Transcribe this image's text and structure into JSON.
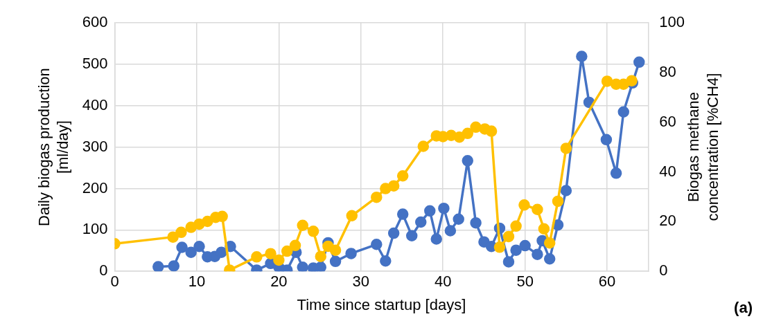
{
  "chart_data": {
    "type": "line",
    "xlabel": "Time since startup [days]",
    "ylabel": "Daily biogas production [ml/day]",
    "y2label": "Biogas methane concentration [%CH4]",
    "xlim": [
      0,
      65
    ],
    "xticks": [
      0,
      10,
      20,
      30,
      40,
      50,
      60
    ],
    "ylim": [
      0,
      600
    ],
    "yticks": [
      0,
      100,
      200,
      300,
      400,
      500,
      600
    ],
    "y2lim": [
      0,
      100
    ],
    "y2ticks": [
      0,
      20,
      40,
      60,
      80,
      100
    ],
    "grid": true,
    "legend": false,
    "marker": "circle",
    "line_style": "solid",
    "annotations": [
      "(a)"
    ],
    "series": [
      {
        "color": "#4472c4",
        "x": [
          5.3,
          7.2,
          8.2,
          9.3,
          10.3,
          11.3,
          12.2,
          13.0,
          14.1,
          17.3,
          19.0,
          20.0,
          21.0,
          22.1,
          22.9,
          24.2,
          25.1,
          26.0,
          26.9,
          28.8,
          31.9,
          33.0,
          34.0,
          35.1,
          36.2,
          37.3,
          38.4,
          39.2,
          40.1,
          40.9,
          41.9,
          43.0,
          44.0,
          45.0,
          45.9,
          46.9,
          48.0,
          48.9,
          50.0,
          51.5,
          52.1,
          53.0,
          54.0,
          55.0,
          56.9,
          57.8,
          59.9,
          61.1,
          62.0,
          63.1,
          63.9
        ],
        "values": [
          11,
          13,
          58,
          46,
          60,
          35,
          36,
          46,
          60,
          3,
          19,
          10,
          3,
          46,
          10,
          8,
          10,
          69,
          24,
          43,
          65,
          25,
          92,
          138,
          86,
          119,
          146,
          78,
          152,
          98,
          126,
          267,
          117,
          71,
          60,
          104,
          23,
          51,
          62,
          41,
          74,
          30,
          112,
          195,
          519,
          408,
          318,
          237,
          385,
          455,
          505
        ]
      },
      {
        "color": "#ffc000",
        "axis": "y2",
        "x": [
          0,
          7.1,
          8.1,
          9.3,
          10.3,
          11.3,
          12.3,
          13.1,
          14.0,
          17.3,
          19.0,
          20.0,
          21.0,
          22.0,
          22.9,
          24.2,
          25.1,
          26.0,
          26.9,
          28.9,
          31.9,
          33.0,
          34.0,
          35.1,
          37.6,
          39.2,
          40.0,
          41.0,
          42.0,
          43.0,
          44.0,
          45.1,
          45.9,
          46.9,
          48.0,
          48.9,
          49.9,
          51.5,
          52.3,
          53.0,
          54.0,
          55.0,
          60.0,
          61.1,
          62.0,
          63.0
        ],
        "values": [
          11.1,
          13.8,
          15.7,
          17.7,
          19.0,
          20.1,
          21.7,
          22.1,
          0.5,
          5.8,
          7.1,
          4.5,
          8.1,
          10.4,
          18.5,
          16.1,
          6.0,
          10.1,
          8.5,
          22.4,
          29.8,
          33.3,
          34.4,
          38.4,
          50.3,
          54.5,
          54.2,
          54.7,
          54.0,
          55.5,
          58.0,
          57.3,
          56.4,
          9.7,
          14.0,
          18.2,
          26.7,
          24.9,
          17.1,
          11.4,
          28.2,
          49.5,
          76.5,
          75.3,
          75.3,
          76.7
        ]
      }
    ]
  }
}
